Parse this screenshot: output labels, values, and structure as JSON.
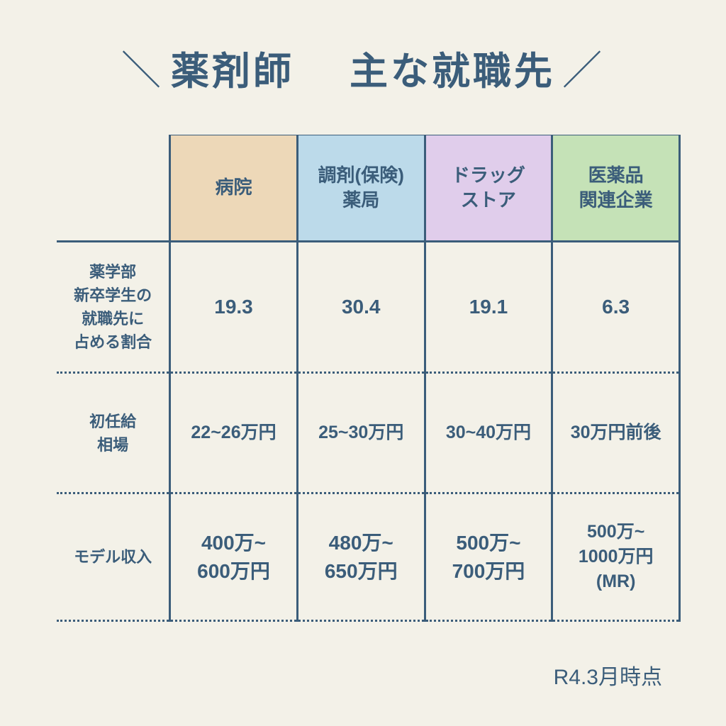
{
  "title_left": "薬剤師",
  "title_right": "主な就職先",
  "columns": [
    {
      "label": "病院",
      "bg": "#edd8b8"
    },
    {
      "label": "調剤(保険)\n薬局",
      "bg": "#bcdaea"
    },
    {
      "label": "ドラッグ\nストア",
      "bg": "#e0cdeb"
    },
    {
      "label": "医薬品\n関連企業",
      "bg": "#c5e2b7"
    }
  ],
  "rows": [
    {
      "label": "薬学部\n新卒学生の\n就職先に\n占める割合",
      "cells": [
        "19.3",
        "30.4",
        "19.1",
        "6.3"
      ]
    },
    {
      "label": "初任給\n相場",
      "cells": [
        "22~26万円",
        "25~30万円",
        "30~40万円",
        "30万円前後"
      ]
    },
    {
      "label": "モデル収入",
      "cells": [
        "400万~\n600万円",
        "480万~\n650万円",
        "500万~\n700万円",
        "500万~\n1000万円\n(MR)"
      ]
    }
  ],
  "footnote": "R4.3月時点",
  "style": {
    "bg": "#f3f1e8",
    "fg": "#3b5d7a",
    "border": "#3b5d7a",
    "title_fontsize": 54,
    "header_fontsize": 26,
    "rowlabel_fontsize": 22,
    "cell_fontsize": 28,
    "footnote_fontsize": 30
  }
}
